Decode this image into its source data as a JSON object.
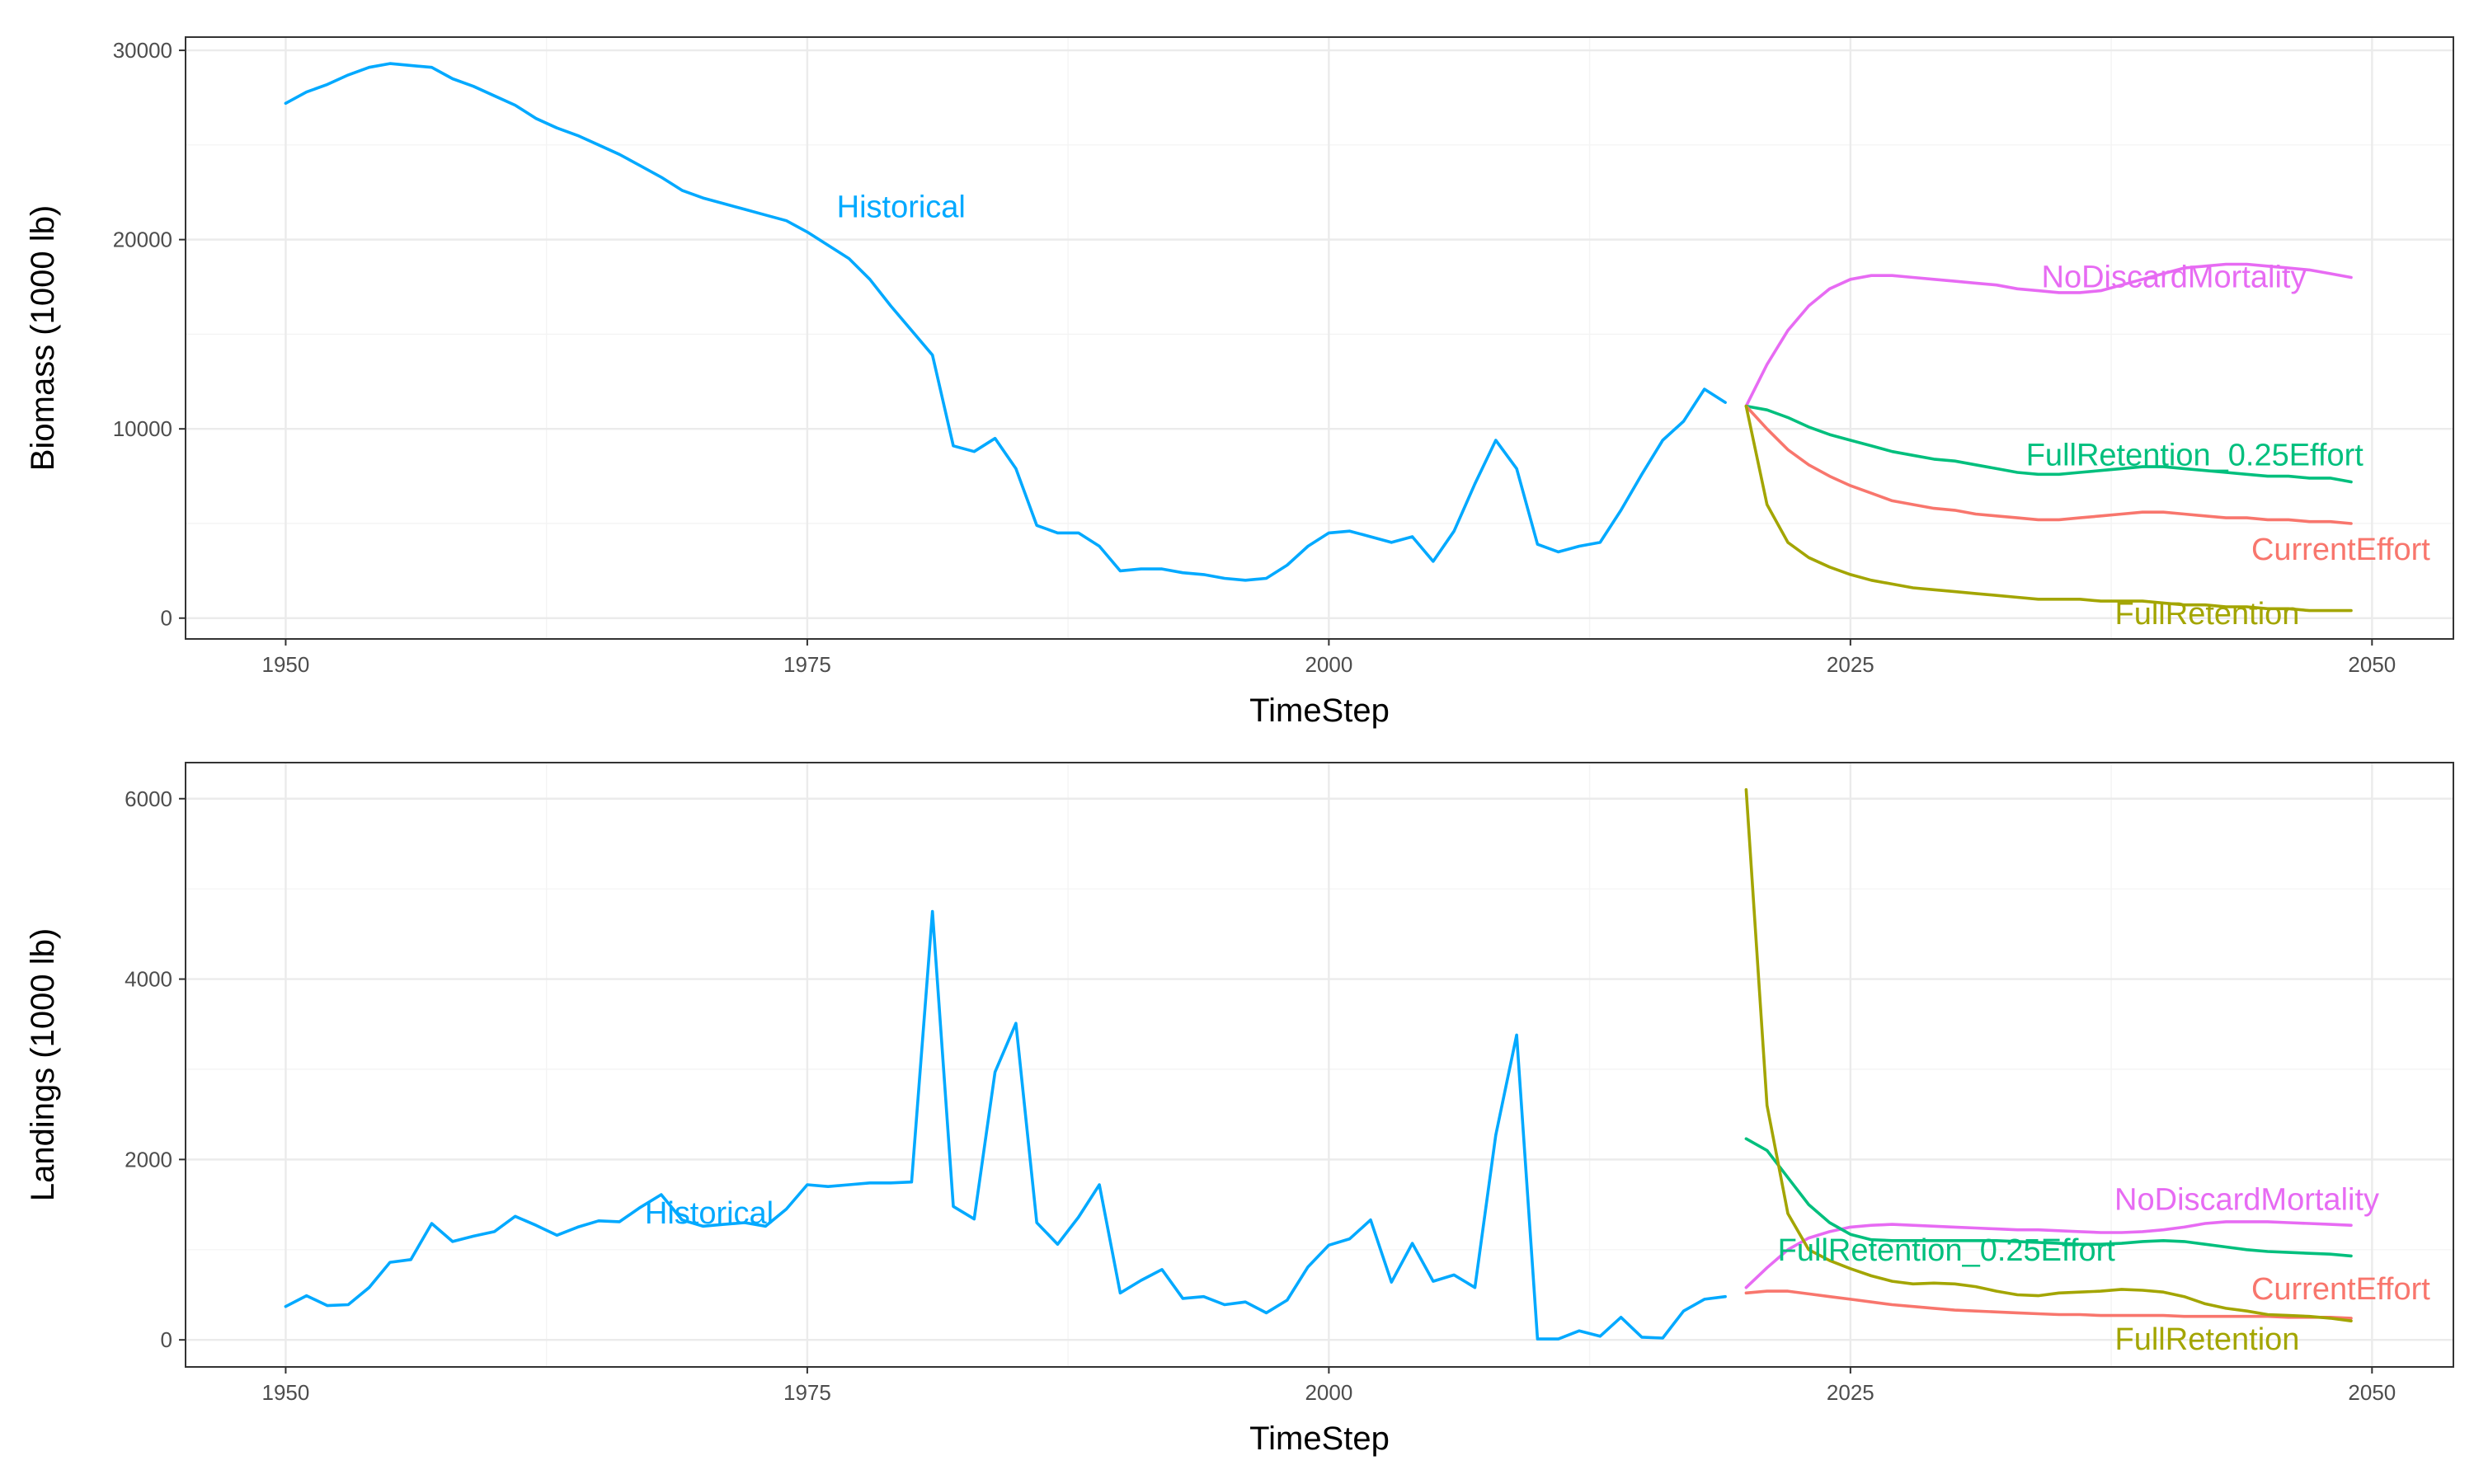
{
  "chart_data": [
    {
      "type": "line",
      "xlabel": "TimeStep",
      "ylabel": "Biomass (1000 lb)",
      "xlim": [
        1945.2,
        2053.9
      ],
      "ylim": [
        -1100,
        30700
      ],
      "x_ticks": [
        1950,
        1975,
        2000,
        2025,
        2050
      ],
      "x_tick_labels": [
        "1950",
        "1975",
        "2000",
        "2025",
        "2050"
      ],
      "y_ticks": [
        0,
        10000,
        20000,
        30000
      ],
      "y_tick_labels": [
        "0",
        "10000",
        "20000",
        "30000"
      ],
      "grid": true,
      "legend": "direct-labels",
      "series": [
        {
          "name": "Historical",
          "color": "#00A9FF",
          "label_at": [
            1979.5,
            21700
          ],
          "x": [
            1950,
            1951,
            1952,
            1953,
            1954,
            1955,
            1956,
            1957,
            1958,
            1959,
            1960,
            1961,
            1962,
            1963,
            1964,
            1965,
            1966,
            1967,
            1968,
            1969,
            1970,
            1971,
            1972,
            1973,
            1974,
            1975,
            1976,
            1977,
            1978,
            1979,
            1980,
            1981,
            1982,
            1983,
            1984,
            1985,
            1986,
            1987,
            1988,
            1989,
            1990,
            1991,
            1992,
            1993,
            1994,
            1995,
            1996,
            1997,
            1998,
            1999,
            2000,
            2001,
            2002,
            2003,
            2004,
            2005,
            2006,
            2007,
            2008,
            2009,
            2010,
            2011,
            2012,
            2013,
            2014,
            2015,
            2016,
            2017,
            2018,
            2019
          ],
          "y": [
            27200,
            27800,
            28200,
            28700,
            29100,
            29300,
            29200,
            29100,
            28500,
            28100,
            27600,
            27100,
            26400,
            25900,
            25500,
            25000,
            24500,
            23900,
            23300,
            22600,
            22200,
            21900,
            21600,
            21300,
            21000,
            20400,
            19700,
            19000,
            17900,
            16500,
            15200,
            13900,
            9100,
            8800,
            9500,
            7900,
            4900,
            4500,
            4500,
            3800,
            2500,
            2600,
            2600,
            2400,
            2300,
            2100,
            2000,
            2100,
            2800,
            3800,
            4500,
            4600,
            4300,
            4000,
            4300,
            3000,
            4600,
            7100,
            9400,
            7900,
            3900,
            3500,
            3800,
            4000,
            5700,
            7600,
            9400,
            10400,
            12100,
            11400
          ]
        },
        {
          "name": "NoDiscardMortality",
          "color": "#E76BF3",
          "label_at": [
            2040.5,
            18000
          ],
          "x": [
            2020,
            2021,
            2022,
            2023,
            2024,
            2025,
            2026,
            2027,
            2028,
            2029,
            2030,
            2031,
            2032,
            2033,
            2034,
            2035,
            2036,
            2037,
            2038,
            2039,
            2040,
            2041,
            2042,
            2043,
            2044,
            2045,
            2046,
            2047,
            2048,
            2049
          ],
          "y": [
            11200,
            13400,
            15200,
            16500,
            17400,
            17900,
            18100,
            18100,
            18000,
            17900,
            17800,
            17700,
            17600,
            17400,
            17300,
            17200,
            17200,
            17300,
            17600,
            17900,
            18200,
            18500,
            18600,
            18700,
            18700,
            18600,
            18500,
            18400,
            18200,
            18000
          ]
        },
        {
          "name": "FullRetention_0.25Effort",
          "color": "#00BF7D",
          "label_at": [
            2041.5,
            8600
          ],
          "x": [
            2020,
            2021,
            2022,
            2023,
            2024,
            2025,
            2026,
            2027,
            2028,
            2029,
            2030,
            2031,
            2032,
            2033,
            2034,
            2035,
            2036,
            2037,
            2038,
            2039,
            2040,
            2041,
            2042,
            2043,
            2044,
            2045,
            2046,
            2047,
            2048,
            2049
          ],
          "y": [
            11200,
            11000,
            10600,
            10100,
            9700,
            9400,
            9100,
            8800,
            8600,
            8400,
            8300,
            8100,
            7900,
            7700,
            7600,
            7600,
            7700,
            7800,
            7900,
            8000,
            8000,
            7900,
            7800,
            7700,
            7600,
            7500,
            7500,
            7400,
            7400,
            7200
          ]
        },
        {
          "name": "CurrentEffort",
          "color": "#F8766D",
          "label_at": [
            2048.5,
            3600
          ],
          "x": [
            2020,
            2021,
            2022,
            2023,
            2024,
            2025,
            2026,
            2027,
            2028,
            2029,
            2030,
            2031,
            2032,
            2033,
            2034,
            2035,
            2036,
            2037,
            2038,
            2039,
            2040,
            2041,
            2042,
            2043,
            2044,
            2045,
            2046,
            2047,
            2048,
            2049
          ],
          "y": [
            11200,
            10000,
            8900,
            8100,
            7500,
            7000,
            6600,
            6200,
            6000,
            5800,
            5700,
            5500,
            5400,
            5300,
            5200,
            5200,
            5300,
            5400,
            5500,
            5600,
            5600,
            5500,
            5400,
            5300,
            5300,
            5200,
            5200,
            5100,
            5100,
            5000
          ]
        },
        {
          "name": "FullRetention",
          "color": "#A3A500",
          "label_at": [
            2042.1,
            200
          ],
          "x": [
            2020,
            2021,
            2022,
            2023,
            2024,
            2025,
            2026,
            2027,
            2028,
            2029,
            2030,
            2031,
            2032,
            2033,
            2034,
            2035,
            2036,
            2037,
            2038,
            2039,
            2040,
            2041,
            2042,
            2043,
            2044,
            2045,
            2046,
            2047,
            2048,
            2049
          ],
          "y": [
            11200,
            6000,
            4000,
            3200,
            2700,
            2300,
            2000,
            1800,
            1600,
            1500,
            1400,
            1300,
            1200,
            1100,
            1000,
            1000,
            1000,
            900,
            900,
            900,
            800,
            700,
            700,
            600,
            600,
            500,
            500,
            400,
            400,
            400
          ]
        }
      ]
    },
    {
      "type": "line",
      "xlabel": "TimeStep",
      "ylabel": "Landings (1000 lb)",
      "xlim": [
        1945.2,
        2053.9
      ],
      "ylim": [
        -300,
        6400
      ],
      "x_ticks": [
        1950,
        1975,
        2000,
        2025,
        2050
      ],
      "x_tick_labels": [
        "1950",
        "1975",
        "2000",
        "2025",
        "2050"
      ],
      "y_ticks": [
        0,
        2000,
        4000,
        6000
      ],
      "y_tick_labels": [
        "0",
        "2000",
        "4000",
        "6000"
      ],
      "grid": true,
      "legend": "direct-labels",
      "series": [
        {
          "name": "Historical",
          "color": "#00A9FF",
          "label_at": [
            1970.3,
            1400
          ],
          "x": [
            1950,
            1951,
            1952,
            1953,
            1954,
            1955,
            1956,
            1957,
            1958,
            1959,
            1960,
            1961,
            1962,
            1963,
            1964,
            1965,
            1966,
            1967,
            1968,
            1969,
            1970,
            1971,
            1972,
            1973,
            1974,
            1975,
            1976,
            1977,
            1978,
            1979,
            1980,
            1981,
            1982,
            1983,
            1984,
            1985,
            1986,
            1987,
            1988,
            1989,
            1990,
            1991,
            1992,
            1993,
            1994,
            1995,
            1996,
            1997,
            1998,
            1999,
            2000,
            2001,
            2002,
            2003,
            2004,
            2005,
            2006,
            2007,
            2008,
            2009,
            2010,
            2011,
            2012,
            2013,
            2014,
            2015,
            2016,
            2017,
            2018,
            2019
          ],
          "y": [
            370,
            490,
            380,
            390,
            580,
            860,
            890,
            1290,
            1090,
            1150,
            1200,
            1370,
            1270,
            1160,
            1250,
            1320,
            1310,
            1470,
            1610,
            1330,
            1260,
            1280,
            1300,
            1260,
            1450,
            1720,
            1700,
            1720,
            1740,
            1740,
            1750,
            4750,
            1480,
            1340,
            2970,
            3510,
            1300,
            1060,
            1360,
            1720,
            520,
            660,
            780,
            460,
            480,
            390,
            420,
            300,
            440,
            810,
            1050,
            1120,
            1330,
            640,
            1070,
            650,
            720,
            580,
            2270,
            3380,
            10,
            10,
            100,
            40,
            250,
            30,
            20,
            320,
            450,
            480
          ]
        },
        {
          "name": "NoDiscardMortality",
          "color": "#E76BF3",
          "label_at": [
            2044,
            1550
          ],
          "x": [
            2020,
            2021,
            2022,
            2023,
            2024,
            2025,
            2026,
            2027,
            2028,
            2029,
            2030,
            2031,
            2032,
            2033,
            2034,
            2035,
            2036,
            2037,
            2038,
            2039,
            2040,
            2041,
            2042,
            2043,
            2044,
            2045,
            2046,
            2047,
            2048,
            2049
          ],
          "y": [
            580,
            800,
            1000,
            1130,
            1200,
            1250,
            1270,
            1280,
            1270,
            1260,
            1250,
            1240,
            1230,
            1220,
            1220,
            1210,
            1200,
            1190,
            1190,
            1200,
            1220,
            1250,
            1290,
            1310,
            1310,
            1310,
            1300,
            1290,
            1280,
            1270
          ]
        },
        {
          "name": "FullRetention_0.25Effort",
          "color": "#00BF7D",
          "label_at": [
            2029.6,
            990
          ],
          "x": [
            2020,
            2021,
            2022,
            2023,
            2024,
            2025,
            2026,
            2027,
            2028,
            2029,
            2030,
            2031,
            2032,
            2033,
            2034,
            2035,
            2036,
            2037,
            2038,
            2039,
            2040,
            2041,
            2042,
            2043,
            2044,
            2045,
            2046,
            2047,
            2048,
            2049
          ],
          "y": [
            2230,
            2100,
            1800,
            1500,
            1300,
            1170,
            1110,
            1100,
            1100,
            1100,
            1100,
            1100,
            1100,
            1090,
            1080,
            1070,
            1060,
            1060,
            1070,
            1090,
            1100,
            1090,
            1060,
            1030,
            1000,
            980,
            970,
            960,
            950,
            930
          ]
        },
        {
          "name": "CurrentEffort",
          "color": "#F8766D",
          "label_at": [
            2048.5,
            560
          ],
          "x": [
            2020,
            2021,
            2022,
            2023,
            2024,
            2025,
            2026,
            2027,
            2028,
            2029,
            2030,
            2031,
            2032,
            2033,
            2034,
            2035,
            2036,
            2037,
            2038,
            2039,
            2040,
            2041,
            2042,
            2043,
            2044,
            2045,
            2046,
            2047,
            2048,
            2049
          ],
          "y": [
            520,
            540,
            540,
            510,
            480,
            450,
            420,
            390,
            370,
            350,
            330,
            320,
            310,
            300,
            290,
            280,
            280,
            270,
            270,
            270,
            270,
            260,
            260,
            260,
            260,
            260,
            250,
            250,
            250,
            240
          ]
        },
        {
          "name": "FullRetention",
          "color": "#A3A500",
          "label_at": [
            2042.1,
            0
          ],
          "x": [
            2020,
            2021,
            2022,
            2023,
            2024,
            2025,
            2026,
            2027,
            2028,
            2029,
            2030,
            2031,
            2032,
            2033,
            2034,
            2035,
            2036,
            2037,
            2038,
            2039,
            2040,
            2041,
            2042,
            2043,
            2044,
            2045,
            2046,
            2047,
            2048,
            2049
          ],
          "y": [
            6100,
            2600,
            1400,
            1000,
            880,
            790,
            710,
            650,
            620,
            630,
            620,
            590,
            540,
            500,
            490,
            520,
            530,
            540,
            560,
            550,
            530,
            480,
            400,
            350,
            320,
            280,
            270,
            260,
            240,
            210
          ]
        }
      ]
    }
  ]
}
